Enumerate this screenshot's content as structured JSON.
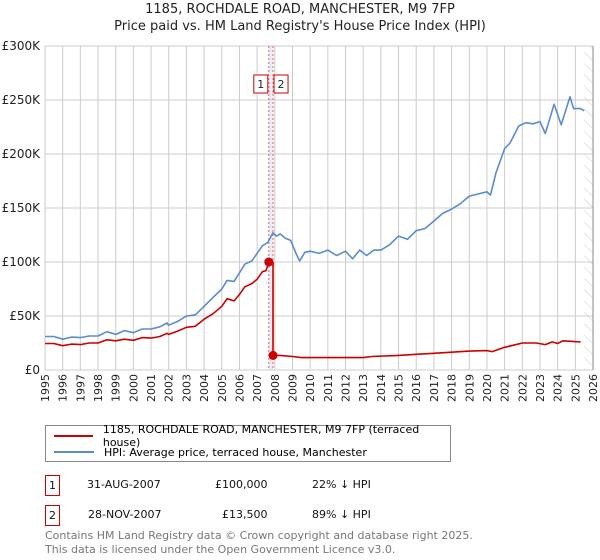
{
  "title": "1185, ROCHDALE ROAD, MANCHESTER, M9 7FP",
  "subtitle": "Price paid vs. HM Land Registry's House Price Index (HPI)",
  "colors": {
    "property": "#cc0000",
    "hpi": "#5b8ccc",
    "grid": "#cccccc"
  },
  "chart_data": {
    "type": "line",
    "title": "1185, ROCHDALE ROAD, MANCHESTER, M9 7FP",
    "xlim": [
      1995,
      2026
    ],
    "ylim": [
      0,
      300000
    ],
    "x_ticks": [
      "1995",
      "1996",
      "1997",
      "1998",
      "1999",
      "2000",
      "2001",
      "2002",
      "2003",
      "2004",
      "2005",
      "2006",
      "2007",
      "2008",
      "2009",
      "2010",
      "2011",
      "2012",
      "2013",
      "2014",
      "2015",
      "2016",
      "2017",
      "2018",
      "2019",
      "2020",
      "2021",
      "2022",
      "2023",
      "2024",
      "2025",
      "2026"
    ],
    "y_ticks": [
      {
        "v": 0,
        "label": "£0"
      },
      {
        "v": 50000,
        "label": "£50K"
      },
      {
        "v": 100000,
        "label": "£100K"
      },
      {
        "v": 150000,
        "label": "£150K"
      },
      {
        "v": 200000,
        "label": "£200K"
      },
      {
        "v": 250000,
        "label": "£250K"
      },
      {
        "v": 300000,
        "label": "£300K"
      }
    ],
    "grid": true,
    "forecast_hatch_from": 2025.5,
    "series": [
      {
        "name": "1185, ROCHDALE ROAD, MANCHESTER, M9 7FP (terraced house)",
        "color": "#cc0000",
        "points": [
          [
            1995,
            24.5
          ],
          [
            1995.5,
            24.5
          ],
          [
            1996,
            22.5
          ],
          [
            1996.5,
            24
          ],
          [
            1997,
            23.5
          ],
          [
            1997.5,
            25
          ],
          [
            1998,
            25
          ],
          [
            1998.5,
            28
          ],
          [
            1999,
            27
          ],
          [
            1999.5,
            28.5
          ],
          [
            2000,
            27.5
          ],
          [
            2000.5,
            30
          ],
          [
            2001,
            29.5
          ],
          [
            2001.5,
            31
          ],
          [
            2001.9,
            34
          ],
          [
            2002,
            33
          ],
          [
            2002.5,
            36
          ],
          [
            2003,
            39.5
          ],
          [
            2003.5,
            40.5
          ],
          [
            2004,
            47
          ],
          [
            2004.5,
            52
          ],
          [
            2005,
            59
          ],
          [
            2005.3,
            66
          ],
          [
            2005.7,
            64
          ],
          [
            2006,
            70
          ],
          [
            2006.3,
            77
          ],
          [
            2006.7,
            80
          ],
          [
            2007,
            84
          ],
          [
            2007.3,
            91
          ],
          [
            2007.5,
            92
          ],
          [
            2007.66,
            100
          ],
          [
            2007.9,
            100
          ],
          [
            2007.9,
            13.5
          ],
          [
            2008.3,
            13.5
          ],
          [
            2009,
            12.5
          ],
          [
            2009.5,
            11.5
          ],
          [
            2013,
            11.5
          ],
          [
            2013.5,
            12.5
          ],
          [
            2015,
            13.5
          ],
          [
            2016,
            14.5
          ],
          [
            2017,
            15.5
          ],
          [
            2018,
            16.5
          ],
          [
            2019,
            17.5
          ],
          [
            2020,
            18
          ],
          [
            2020.3,
            17
          ],
          [
            2021,
            21
          ],
          [
            2021.5,
            23
          ],
          [
            2022,
            25
          ],
          [
            2022.8,
            25
          ],
          [
            2023.3,
            23.5
          ],
          [
            2023.7,
            26
          ],
          [
            2024,
            24.5
          ],
          [
            2024.3,
            27
          ],
          [
            2025.3,
            26
          ]
        ]
      },
      {
        "name": "HPI: Average price, terraced house, Manchester",
        "color": "#5b8ccc",
        "points": [
          [
            1995,
            31
          ],
          [
            1995.5,
            31
          ],
          [
            1996,
            28.5
          ],
          [
            1996.5,
            30.5
          ],
          [
            1997,
            30
          ],
          [
            1997.5,
            31.5
          ],
          [
            1998,
            31.5
          ],
          [
            1998.5,
            35.5
          ],
          [
            1999,
            33
          ],
          [
            1999.5,
            36.5
          ],
          [
            2000,
            34.5
          ],
          [
            2000.5,
            38
          ],
          [
            2001,
            38
          ],
          [
            2001.5,
            40
          ],
          [
            2001.9,
            43.5
          ],
          [
            2002,
            41.5
          ],
          [
            2002.5,
            45
          ],
          [
            2003,
            50
          ],
          [
            2003.5,
            51
          ],
          [
            2004,
            59
          ],
          [
            2004.5,
            67
          ],
          [
            2005,
            75
          ],
          [
            2005.3,
            83
          ],
          [
            2005.7,
            82
          ],
          [
            2006,
            90
          ],
          [
            2006.3,
            98
          ],
          [
            2006.7,
            101
          ],
          [
            2007,
            108
          ],
          [
            2007.3,
            115
          ],
          [
            2007.6,
            118
          ],
          [
            2007.9,
            127
          ],
          [
            2008.1,
            124
          ],
          [
            2008.3,
            126
          ],
          [
            2008.6,
            122
          ],
          [
            2008.9,
            120
          ],
          [
            2009.2,
            108
          ],
          [
            2009.4,
            101
          ],
          [
            2009.7,
            109
          ],
          [
            2010,
            110
          ],
          [
            2010.5,
            108
          ],
          [
            2011,
            111
          ],
          [
            2011.5,
            106
          ],
          [
            2012,
            110
          ],
          [
            2012.4,
            103
          ],
          [
            2012.8,
            111
          ],
          [
            2013.2,
            106
          ],
          [
            2013.6,
            111
          ],
          [
            2014,
            111
          ],
          [
            2014.5,
            116
          ],
          [
            2015,
            124
          ],
          [
            2015.5,
            121
          ],
          [
            2016,
            129
          ],
          [
            2016.5,
            131
          ],
          [
            2017,
            138
          ],
          [
            2017.5,
            145
          ],
          [
            2018,
            149
          ],
          [
            2018.5,
            154
          ],
          [
            2019,
            161
          ],
          [
            2019.5,
            163
          ],
          [
            2020,
            165
          ],
          [
            2020.2,
            162
          ],
          [
            2020.5,
            182
          ],
          [
            2021,
            205
          ],
          [
            2021.3,
            210
          ],
          [
            2021.8,
            226
          ],
          [
            2022.2,
            229
          ],
          [
            2022.6,
            228
          ],
          [
            2023,
            230
          ],
          [
            2023.3,
            219
          ],
          [
            2023.8,
            246
          ],
          [
            2024.2,
            227
          ],
          [
            2024.7,
            253
          ],
          [
            2024.9,
            242
          ],
          [
            2025.3,
            242
          ],
          [
            2025.5,
            240
          ]
        ]
      }
    ],
    "sales": [
      {
        "id": "1",
        "x": 2007.66,
        "y": 100
      },
      {
        "id": "2",
        "x": 2007.9,
        "y": 13.5
      }
    ],
    "value_units": "£K"
  },
  "legend": [
    {
      "label": "1185, ROCHDALE ROAD, MANCHESTER, M9 7FP (terraced house)"
    },
    {
      "label": "HPI: Average price, terraced house, Manchester"
    }
  ],
  "transactions": [
    {
      "id": "1",
      "date": "31-AUG-2007",
      "price": "£100,000",
      "hpi": "22% ↓ HPI"
    },
    {
      "id": "2",
      "date": "28-NOV-2007",
      "price": "£13,500",
      "hpi": "89% ↓ HPI"
    }
  ],
  "footer": {
    "line1": "Contains HM Land Registry data © Crown copyright and database right 2025.",
    "line2": "This data is licensed under the Open Government Licence v3.0."
  }
}
